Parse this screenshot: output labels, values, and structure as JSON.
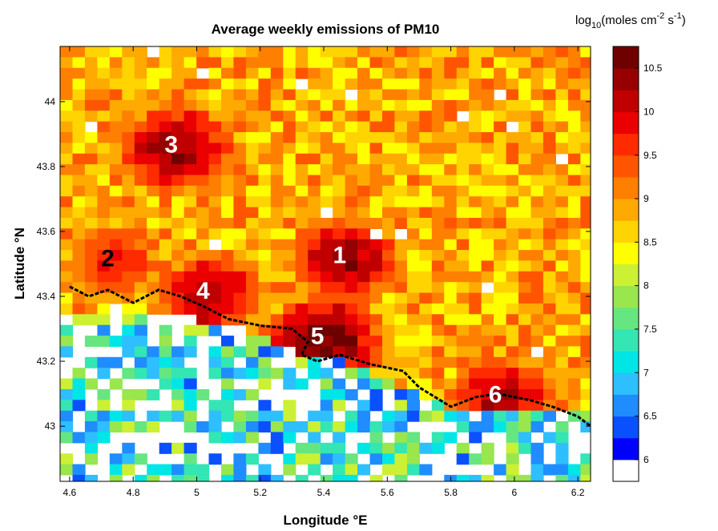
{
  "chart_data": {
    "type": "heatmap",
    "title": "Average weekly emissions of PM10",
    "xlabel": "Longitude °E",
    "ylabel": "Latitude °N",
    "xlim": [
      4.57,
      6.24
    ],
    "ylim": [
      42.83,
      44.17
    ],
    "x_ticks": [
      "4.6",
      "4.8",
      "5",
      "5.2",
      "5.4",
      "5.6",
      "5.8",
      "6",
      "6.2"
    ],
    "y_ticks": [
      "43",
      "43.2",
      "43.4",
      "43.6",
      "43.8",
      "44"
    ],
    "colorbar": {
      "unit": {
        "prefix": "log",
        "sub": "10",
        "mid": "(moles cm",
        "sup1": "-2",
        "mid2": " s",
        "sup2": "-1",
        "suffix": ")"
      },
      "range": [
        5.75,
        10.75
      ],
      "ticks": [
        "6",
        "6.5",
        "7",
        "7.5",
        "8",
        "8.5",
        "9",
        "9.5",
        "10",
        "10.5"
      ],
      "colors": [
        "#ffffff",
        "#0000ff",
        "#0a50ff",
        "#1f8dff",
        "#2ebfff",
        "#00e6e6",
        "#33e6b3",
        "#66e680",
        "#99e64d",
        "#ccf033",
        "#ffff00",
        "#ffd400",
        "#ffaa00",
        "#ff7f00",
        "#ff5500",
        "#ff2a00",
        "#ea0000",
        "#c00000",
        "#960000",
        "#6e0000"
      ]
    },
    "hotspots": [
      {
        "label": "1",
        "lon": 5.45,
        "lat": 43.53,
        "value": 10.3
      },
      {
        "label": "2",
        "lon": 4.72,
        "lat": 43.52,
        "value": 9.8
      },
      {
        "label": "3",
        "lon": 4.92,
        "lat": 43.87,
        "value": 10.4
      },
      {
        "label": "4",
        "lon": 5.02,
        "lat": 43.42,
        "value": 10.2
      },
      {
        "label": "5",
        "lon": 5.38,
        "lat": 43.28,
        "value": 10.6
      },
      {
        "label": "6",
        "lon": 5.94,
        "lat": 43.1,
        "value": 10.2
      }
    ],
    "grid": false,
    "note_colors": {
      "label_dark": "#000000",
      "label_light": "#ffffff"
    }
  }
}
